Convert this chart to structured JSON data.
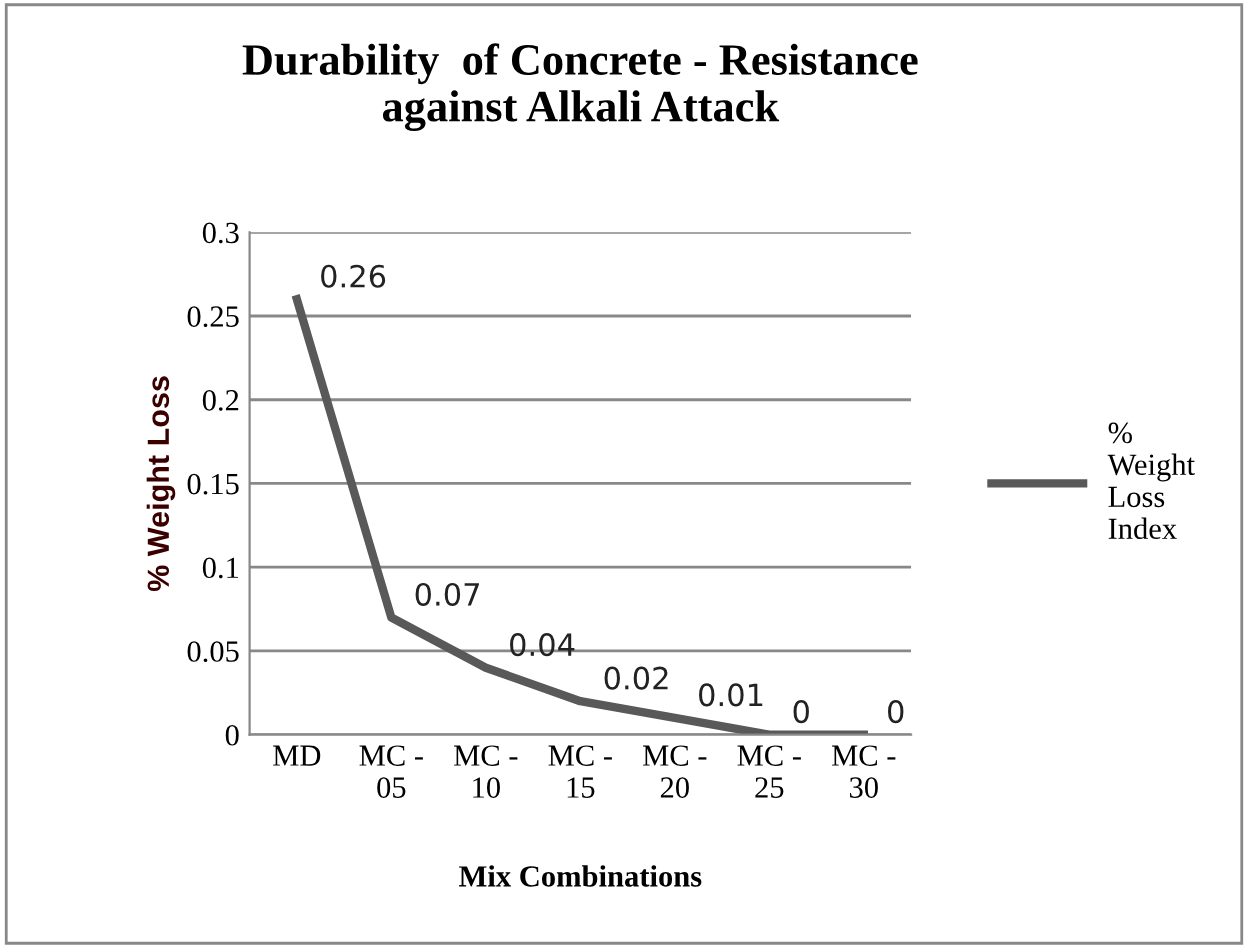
{
  "chart_data": {
    "type": "line",
    "title": "Durability  of Concrete - Resistance\nagainst Alkali Attack",
    "xlabel": "Mix Combinations",
    "ylabel": "% Weight Loss",
    "categories": [
      "MD",
      "MC - 05",
      "MC - 10",
      "MC - 15",
      "MC - 20",
      "MC - 25",
      "MC - 30"
    ],
    "series": [
      {
        "name": "% Weight Loss Index",
        "color": "#595959",
        "values": [
          0.26,
          0.07,
          0.04,
          0.02,
          0.01,
          0,
          0
        ]
      }
    ],
    "ylim": [
      0,
      0.3
    ],
    "yticks": [
      0,
      0.05,
      0.1,
      0.15,
      0.2,
      0.25,
      0.3
    ],
    "grid": "y",
    "legend": "right",
    "data_labels": true,
    "marker": "none",
    "line_style": "solid"
  }
}
